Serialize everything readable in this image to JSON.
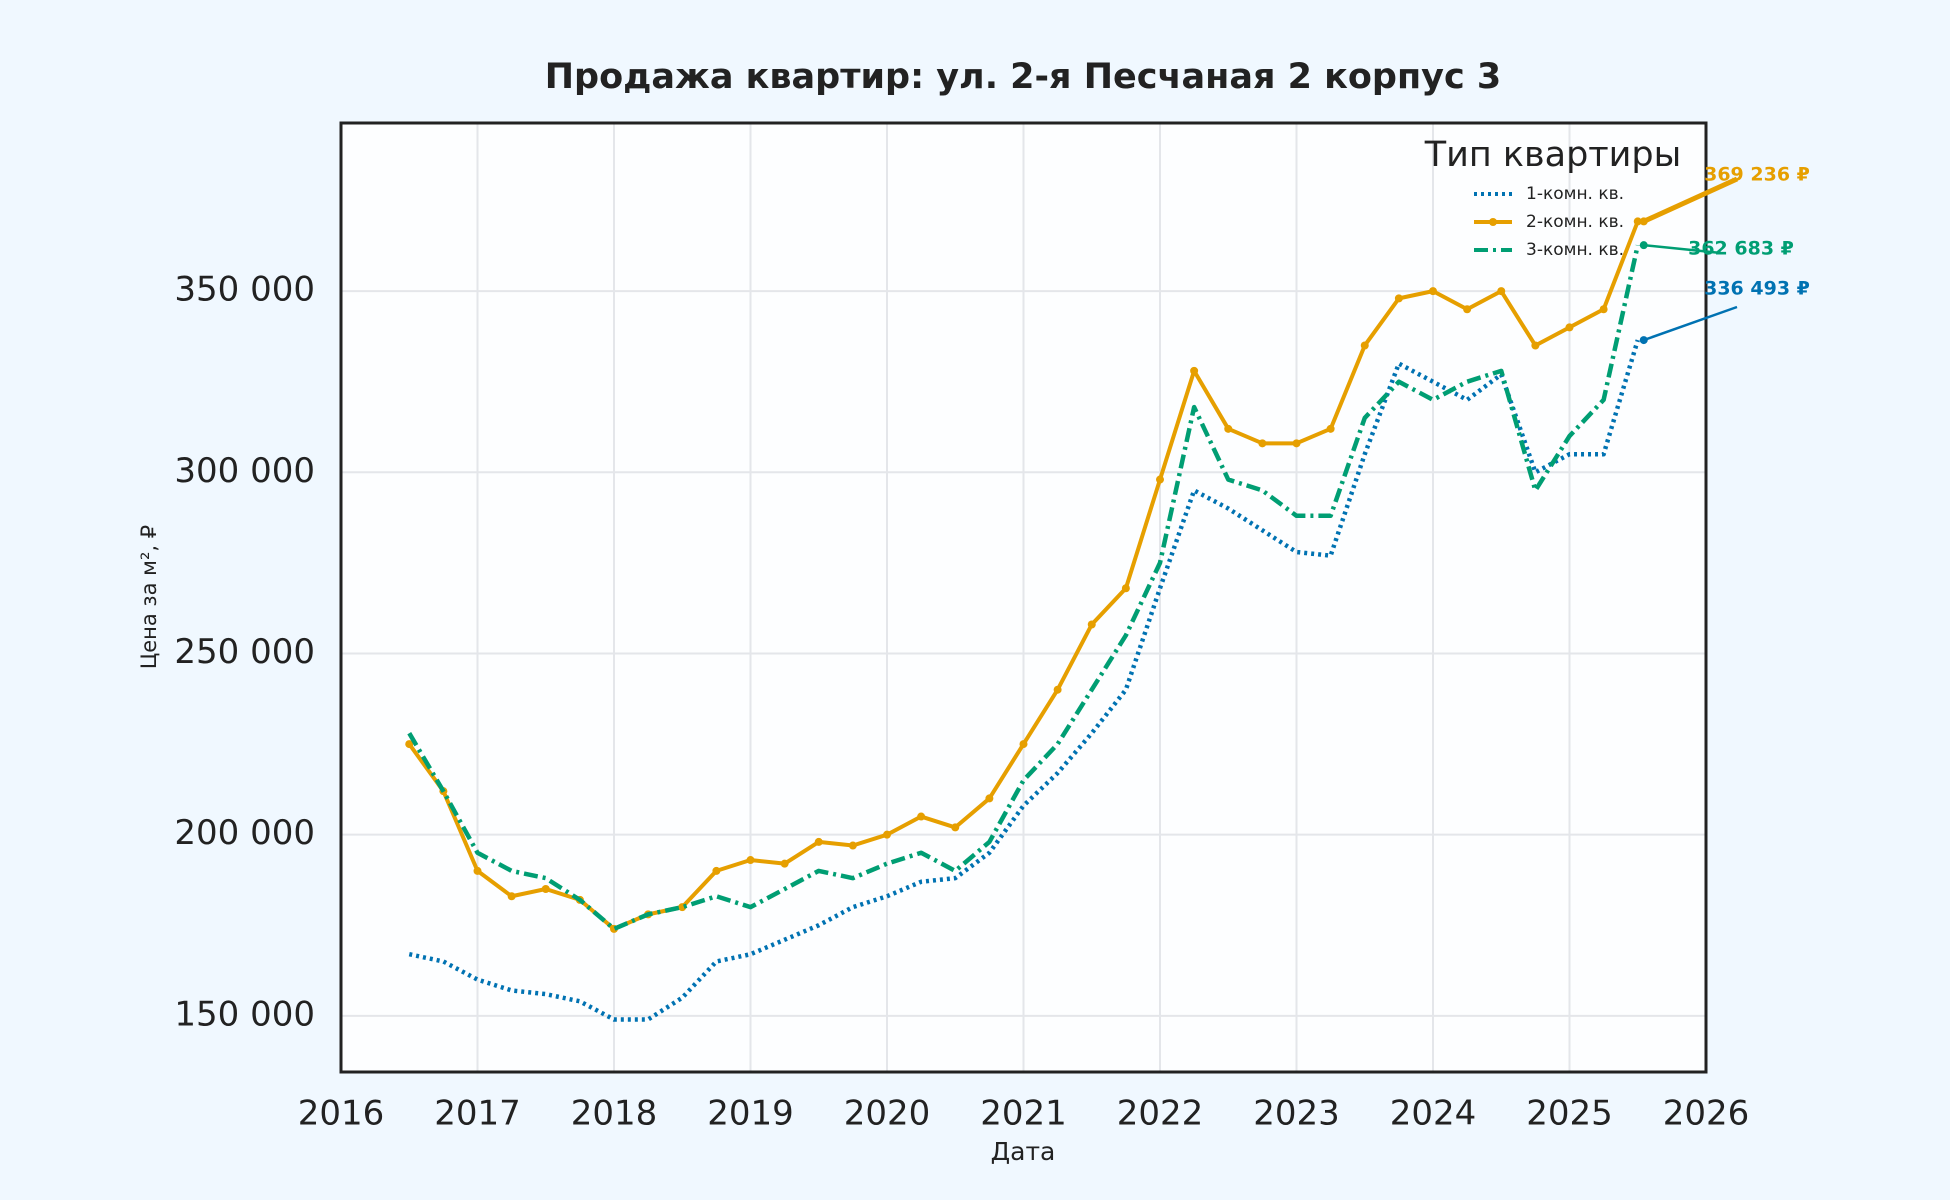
{
  "chart_data": {
    "type": "line",
    "title": "Продажа квартир: ул. 2-я Песчаная 2 корпус 3",
    "x_label": "Дата",
    "y_label": "Цена за м², ₽",
    "legend_title": "Тип квартиры",
    "legend": "upper right",
    "grid": true,
    "xlim": [
      2016,
      2026
    ],
    "xticks": [
      2016,
      2017,
      2018,
      2019,
      2020,
      2021,
      2022,
      2023,
      2024,
      2025,
      2026
    ],
    "ylim": [
      134500,
      396400
    ],
    "yticks": [
      {
        "value": 150000,
        "label": "150 000"
      },
      {
        "value": 200000,
        "label": "200 000"
      },
      {
        "value": 250000,
        "label": "250 000"
      },
      {
        "value": 300000,
        "label": "300 000"
      },
      {
        "value": 350000,
        "label": "350 000"
      }
    ],
    "x": [
      2016.5,
      2016.75,
      2017.0,
      2017.25,
      2017.5,
      2017.75,
      2018.0,
      2018.25,
      2018.5,
      2018.75,
      2019.0,
      2019.25,
      2019.5,
      2019.75,
      2020.0,
      2020.25,
      2020.5,
      2020.75,
      2021.0,
      2021.25,
      2021.5,
      2021.75,
      2022.0,
      2022.25,
      2022.5,
      2022.75,
      2023.0,
      2023.25,
      2023.5,
      2023.75,
      2024.0,
      2024.25,
      2024.5,
      2024.75,
      2025.0,
      2025.25,
      2025.5
    ],
    "series": [
      {
        "name": "1-комн. кв.",
        "color": "#0072b2",
        "linestyle": "dotted",
        "values": [
          167000,
          165000,
          160000,
          157000,
          156000,
          154000,
          149000,
          149000,
          155000,
          165000,
          167000,
          171000,
          175000,
          180000,
          183000,
          187000,
          188000,
          195000,
          208000,
          217000,
          228000,
          240000,
          268000,
          295000,
          290000,
          284000,
          278000,
          277000,
          305000,
          330000,
          325000,
          320000,
          327000,
          300000,
          305000,
          305000,
          336493
        ],
        "value_labels": [
          null,
          null,
          null,
          null,
          null,
          null,
          null,
          null,
          null,
          null,
          null,
          null,
          null,
          null,
          null,
          null,
          null,
          null,
          null,
          null,
          null,
          null,
          null,
          null,
          null,
          null,
          null,
          null,
          null,
          null,
          null,
          null,
          null,
          null,
          null,
          null,
          "336 493 ₽"
        ]
      },
      {
        "name": "2-комн. кв.",
        "color": "#e69f00",
        "linestyle": "solid",
        "marker": "o",
        "values": [
          225000,
          212000,
          190000,
          183000,
          185000,
          182000,
          174000,
          178000,
          180000,
          190000,
          193000,
          192000,
          198000,
          197000,
          200000,
          205000,
          202000,
          210000,
          225000,
          240000,
          258000,
          268000,
          298000,
          328000,
          312000,
          308000,
          308000,
          312000,
          335000,
          348000,
          350000,
          345000,
          350000,
          335000,
          340000,
          345000,
          369236
        ],
        "value_labels": [
          null,
          null,
          null,
          null,
          null,
          null,
          null,
          null,
          null,
          null,
          null,
          null,
          null,
          null,
          null,
          null,
          null,
          null,
          null,
          null,
          null,
          null,
          null,
          null,
          null,
          null,
          null,
          null,
          null,
          null,
          null,
          null,
          null,
          null,
          null,
          null,
          "369 236 ₽"
        ]
      },
      {
        "name": "3-комн. кв.",
        "color": "#009e73",
        "linestyle": "dashdot",
        "values": [
          228000,
          212000,
          195000,
          190000,
          188000,
          182000,
          174000,
          178000,
          180000,
          183000,
          180000,
          185000,
          190000,
          188000,
          192000,
          195000,
          190000,
          198000,
          215000,
          225000,
          240000,
          255000,
          275000,
          318000,
          298000,
          295000,
          288000,
          288000,
          315000,
          325000,
          320000,
          325000,
          328000,
          295000,
          310000,
          320000,
          362683
        ],
        "value_labels": [
          null,
          null,
          null,
          null,
          null,
          null,
          null,
          null,
          null,
          null,
          null,
          null,
          null,
          null,
          null,
          null,
          null,
          null,
          null,
          null,
          null,
          null,
          null,
          null,
          null,
          null,
          null,
          null,
          null,
          null,
          null,
          null,
          null,
          null,
          null,
          null,
          "362 683 ₽"
        ]
      }
    ]
  }
}
